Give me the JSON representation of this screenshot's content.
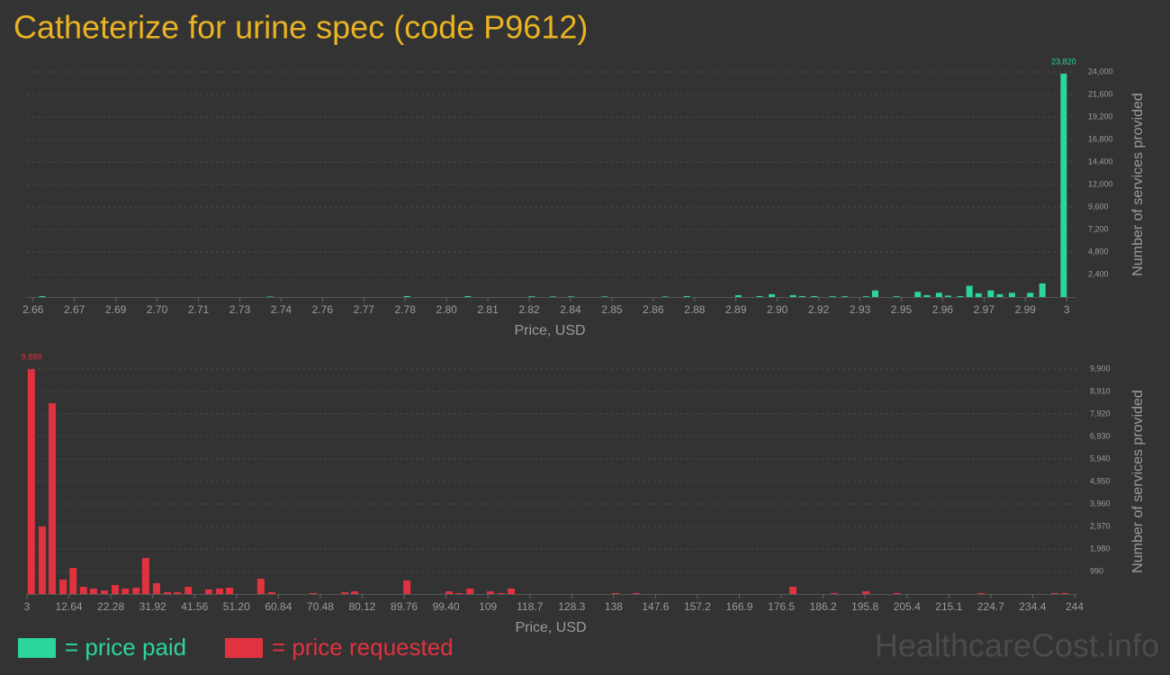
{
  "title": "Catheterize for urine spec (code P9612)",
  "watermark": "HealthcareCost.info",
  "chart_data": [
    {
      "type": "bar",
      "xlabel": "Price, USD",
      "ylabel": "Number of services provided",
      "grid": true,
      "x": [
        2.663,
        2.738,
        2.783,
        2.803,
        2.824,
        2.831,
        2.837,
        2.848,
        2.868,
        2.875,
        2.892,
        2.899,
        2.903,
        2.91,
        2.913,
        2.917,
        2.923,
        2.927,
        2.934,
        2.937,
        2.944,
        2.951,
        2.954,
        2.958,
        2.961,
        2.965,
        2.968,
        2.971,
        2.975,
        2.978,
        2.982,
        2.988,
        2.992,
        2.999
      ],
      "series": [
        {
          "name": "= price paid",
          "color": "#2ad69a",
          "values": [
            100,
            50,
            100,
            100,
            80,
            60,
            60,
            60,
            60,
            100,
            200,
            100,
            300,
            200,
            100,
            100,
            80,
            80,
            80,
            700,
            80,
            550,
            200,
            450,
            150,
            100,
            1200,
            400,
            700,
            300,
            450,
            450,
            1450,
            23820
          ],
          "value_labels": [
            null,
            null,
            null,
            null,
            null,
            null,
            null,
            null,
            null,
            null,
            null,
            null,
            null,
            null,
            null,
            null,
            null,
            null,
            null,
            null,
            null,
            null,
            null,
            null,
            null,
            null,
            null,
            null,
            null,
            null,
            null,
            null,
            null,
            "23,820"
          ]
        }
      ],
      "xlim": [
        2.658,
        3.002
      ],
      "xticks": [
        2.66,
        {
          "value": 2.6736,
          "label": "2.67"
        },
        {
          "value": 2.6872,
          "label": "2.69"
        },
        {
          "value": 2.7008,
          "label": "2.70"
        },
        {
          "value": 2.7144,
          "label": "2.71"
        },
        {
          "value": 2.728,
          "label": "2.73"
        },
        {
          "value": 2.7416,
          "label": "2.74"
        },
        {
          "value": 2.7552,
          "label": "2.76"
        },
        {
          "value": 2.7688,
          "label": "2.77"
        },
        {
          "value": 2.7824,
          "label": "2.78"
        },
        {
          "value": 2.796,
          "label": "2.80"
        },
        {
          "value": 2.8096,
          "label": "2.81"
        },
        {
          "value": 2.8232,
          "label": "2.82"
        },
        {
          "value": 2.8368,
          "label": "2.84"
        },
        {
          "value": 2.8504,
          "label": "2.85"
        },
        {
          "value": 2.864,
          "label": "2.86"
        },
        {
          "value": 2.8776,
          "label": "2.88"
        },
        {
          "value": 2.8912,
          "label": "2.89"
        },
        {
          "value": 2.9048,
          "label": "2.90"
        },
        {
          "value": 2.9184,
          "label": "2.92"
        },
        {
          "value": 2.932,
          "label": "2.93"
        },
        {
          "value": 2.9456,
          "label": "2.95"
        },
        {
          "value": 2.9592,
          "label": "2.96"
        },
        {
          "value": 2.9728,
          "label": "2.97"
        },
        {
          "value": 2.9864,
          "label": "2.99"
        },
        3
      ],
      "ylim": [
        0,
        24000
      ],
      "yticks": [
        {
          "value": 2400,
          "label": "2,400"
        },
        {
          "value": 4800,
          "label": "4,800"
        },
        {
          "value": 7200,
          "label": "7,200"
        },
        {
          "value": 9600,
          "label": "9,600"
        },
        {
          "value": 12000,
          "label": "12,000"
        },
        {
          "value": 14400,
          "label": "14,400"
        },
        {
          "value": 16800,
          "label": "16,800"
        },
        {
          "value": 19200,
          "label": "19,200"
        },
        {
          "value": 21600,
          "label": "21,600"
        },
        {
          "value": 24000,
          "label": "24,000"
        }
      ]
    },
    {
      "type": "bar",
      "xlabel": "Price, USD",
      "ylabel": "Number of services provided",
      "grid": true,
      "x": [
        4.0,
        6.5,
        8.8,
        11.3,
        13.6,
        16.0,
        18.3,
        20.8,
        23.3,
        25.6,
        28.1,
        30.3,
        32.8,
        35.3,
        37.6,
        40.1,
        44.8,
        47.3,
        49.6,
        56.8,
        59.3,
        68.8,
        76.1,
        78.4,
        90.4,
        100.1,
        102.4,
        104.9,
        109.6,
        112.1,
        114.4,
        138.4,
        143.2,
        179.2,
        188.7,
        196.0,
        203.2,
        222.5,
        239.4,
        241.7
      ],
      "series": [
        {
          "name": "= price requested",
          "color": "#e0323f",
          "values": [
            9889,
            2970,
            8395,
            634,
            1148,
            317,
            238,
            158,
            396,
            238,
            277,
            1584,
            475,
            79,
            79,
            317,
            198,
            238,
            277,
            673,
            79,
            40,
            79,
            119,
            594,
            119,
            40,
            238,
            119,
            40,
            238,
            40,
            40,
            317,
            40,
            119,
            40,
            40,
            40,
            40
          ],
          "value_labels": [
            "9,889",
            null,
            null,
            null,
            null,
            null,
            null,
            null,
            null,
            null,
            null,
            null,
            null,
            null,
            null,
            null,
            null,
            null,
            null,
            null,
            null,
            null,
            null,
            null,
            null,
            null,
            null,
            null,
            null,
            null,
            null,
            null,
            null,
            null,
            null,
            null,
            null,
            null,
            null,
            null
          ]
        }
      ],
      "xlim": [
        3,
        244
      ],
      "xticks": [
        3,
        12.64,
        22.28,
        31.92,
        41.56,
        {
          "value": 51.2,
          "label": "51.20"
        },
        60.84,
        70.48,
        80.12,
        89.76,
        {
          "value": 99.4,
          "label": "99.40"
        },
        {
          "value": 109.04,
          "label": "109"
        },
        {
          "value": 118.68,
          "label": "118.7"
        },
        {
          "value": 128.32,
          "label": "128.3"
        },
        {
          "value": 137.96,
          "label": "138"
        },
        147.6,
        {
          "value": 157.24,
          "label": "157.2"
        },
        {
          "value": 166.88,
          "label": "166.9"
        },
        {
          "value": 176.52,
          "label": "176.5"
        },
        {
          "value": 186.16,
          "label": "186.2"
        },
        195.8,
        {
          "value": 205.44,
          "label": "205.4"
        },
        {
          "value": 215.08,
          "label": "215.1"
        },
        {
          "value": 224.72,
          "label": "224.7"
        },
        {
          "value": 234.36,
          "label": "234.4"
        },
        244
      ],
      "ylim": [
        0,
        9900
      ],
      "yticks": [
        990,
        {
          "value": 1980,
          "label": "1,980"
        },
        {
          "value": 2970,
          "label": "2,970"
        },
        {
          "value": 3960,
          "label": "3,960"
        },
        {
          "value": 4950,
          "label": "4,950"
        },
        {
          "value": 5940,
          "label": "5,940"
        },
        {
          "value": 6930,
          "label": "6,930"
        },
        {
          "value": 7920,
          "label": "7,920"
        },
        {
          "value": 8910,
          "label": "8,910"
        },
        {
          "value": 9900,
          "label": "9,900"
        }
      ]
    }
  ]
}
